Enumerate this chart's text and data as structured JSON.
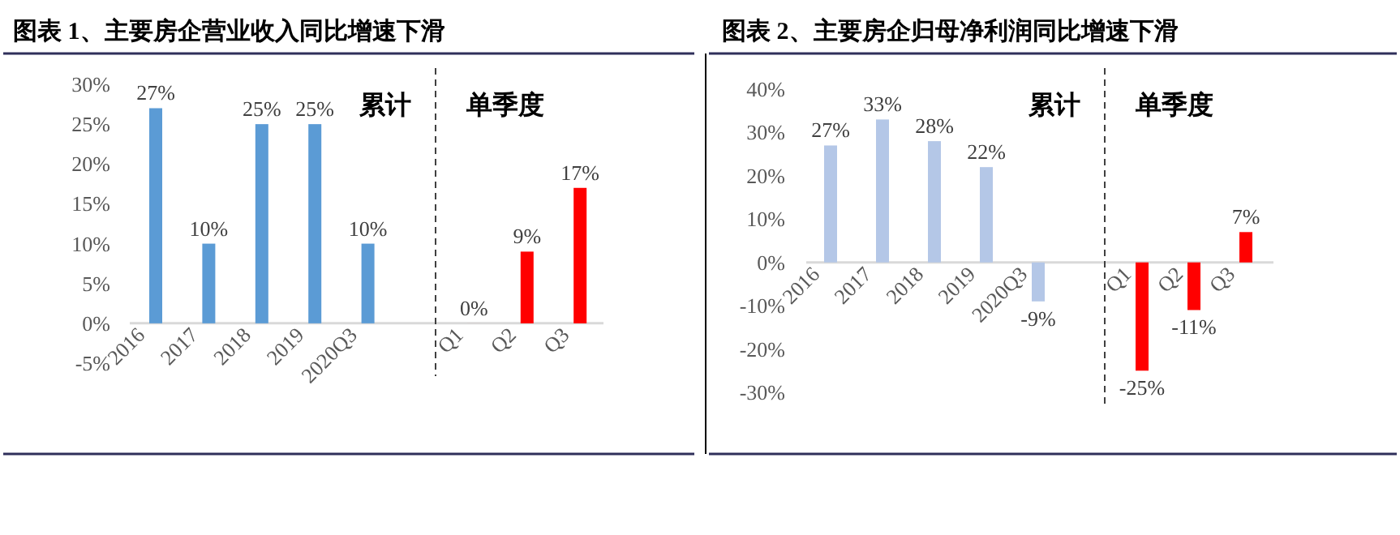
{
  "chart_data": [
    {
      "type": "bar",
      "title": "图表 1、主要房企营业收入同比增速下滑",
      "categories": [
        "2016",
        "2017",
        "2018",
        "2019",
        "2020Q3",
        null,
        "Q1",
        "Q2",
        "Q3"
      ],
      "values": [
        27,
        10,
        25,
        25,
        10,
        null,
        0,
        9,
        17
      ],
      "value_labels": [
        "27%",
        "10%",
        "25%",
        "25%",
        "10%",
        null,
        "0%",
        "9%",
        "17%"
      ],
      "colors": [
        "#5b9bd5",
        "#5b9bd5",
        "#5b9bd5",
        "#5b9bd5",
        "#5b9bd5",
        null,
        "#ff0000",
        "#ff0000",
        "#ff0000"
      ],
      "ylim": [
        -5,
        30
      ],
      "yticks": [
        {
          "value": -5,
          "label": "-5%"
        },
        {
          "value": 0,
          "label": "0%"
        },
        {
          "value": 5,
          "label": "5%"
        },
        {
          "value": 10,
          "label": "10%"
        },
        {
          "value": 15,
          "label": "15%"
        },
        {
          "value": 20,
          "label": "20%"
        },
        {
          "value": 25,
          "label": "25%"
        },
        {
          "value": 30,
          "label": "30%"
        }
      ],
      "annotations": [
        "累计",
        "单季度"
      ]
    },
    {
      "type": "bar",
      "title": "图表 2、主要房企归母净利润同比增速下滑",
      "categories": [
        "2016",
        "2017",
        "2018",
        "2019",
        "2020Q3",
        null,
        "Q1",
        "Q2",
        "Q3"
      ],
      "values": [
        27,
        33,
        28,
        22,
        -9,
        null,
        -25,
        -11,
        7
      ],
      "value_labels": [
        "27%",
        "33%",
        "28%",
        "22%",
        "-9%",
        null,
        "-25%",
        "-11%",
        "7%"
      ],
      "colors": [
        "#b4c7e7",
        "#b4c7e7",
        "#b4c7e7",
        "#b4c7e7",
        "#b4c7e7",
        null,
        "#ff0000",
        "#ff0000",
        "#ff0000"
      ],
      "ylim": [
        -30,
        40
      ],
      "yticks": [
        {
          "value": -30,
          "label": "-30%"
        },
        {
          "value": -20,
          "label": "-20%"
        },
        {
          "value": -10,
          "label": "-10%"
        },
        {
          "value": 0,
          "label": "0%"
        },
        {
          "value": 10,
          "label": "10%"
        },
        {
          "value": 20,
          "label": "20%"
        },
        {
          "value": 30,
          "label": "30%"
        },
        {
          "value": 40,
          "label": "40%"
        }
      ],
      "annotations": [
        "累计",
        "单季度"
      ]
    }
  ]
}
